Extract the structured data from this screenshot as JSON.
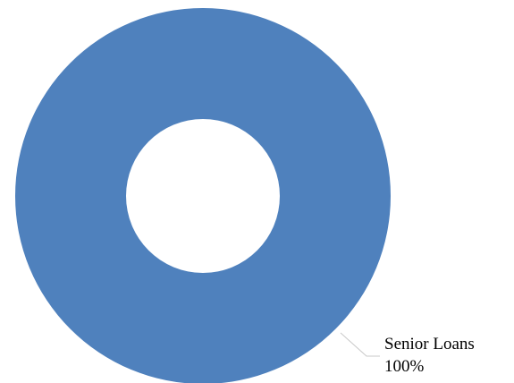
{
  "chart_data": {
    "type": "pie",
    "donut": true,
    "slices": [
      {
        "label": "Senior Loans",
        "value": 100,
        "percent_label": "100%",
        "color": "#4f81bd"
      }
    ],
    "title": "",
    "legend": false
  }
}
